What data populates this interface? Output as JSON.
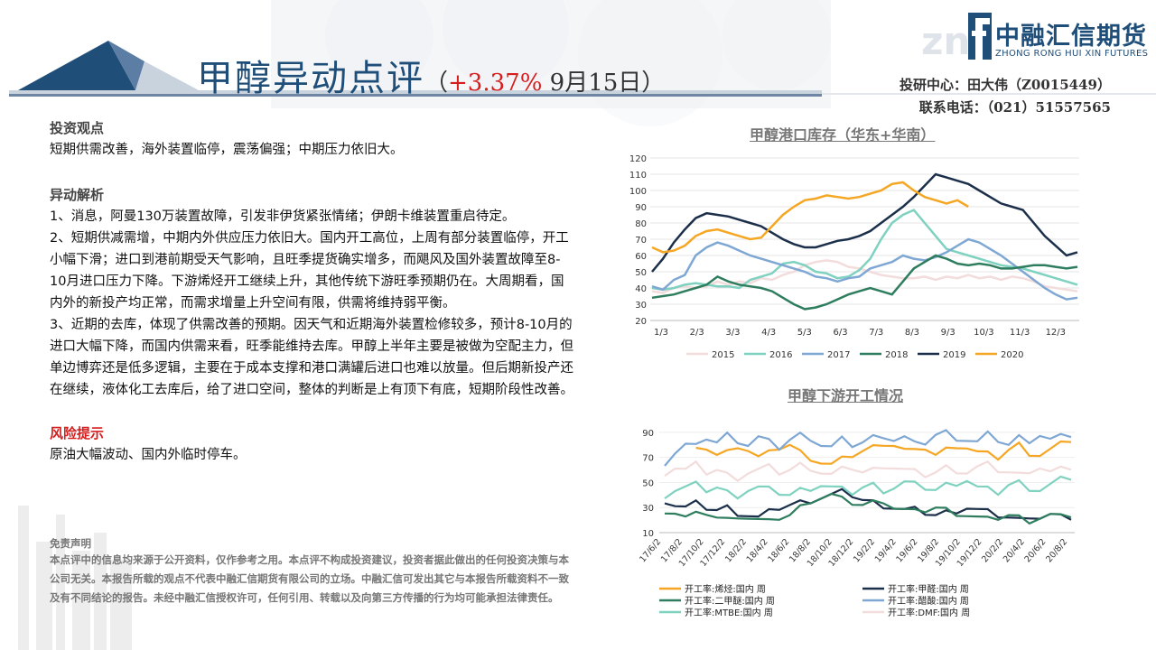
{
  "header": {
    "title_main": "甲醇异动点评",
    "title_sub_open": "（",
    "title_pct": "+3.37%",
    "title_date": " 9月15日）"
  },
  "logo": {
    "cn": "中融汇信期货",
    "en": "ZHONG RONG HUI XIN FUTURES"
  },
  "contact": {
    "line1": "投研中心：田大伟（Z0015449）",
    "line2": "联系电话：（021）51557565"
  },
  "sections": {
    "view_title": "投资观点",
    "view_text": "短期供需改善，海外装置临停，震荡偏强；中期压力依旧大。",
    "analysis_title": "异动解析",
    "analysis": [
      "1、消息，阿曼130万装置故障，引发非伊货紧张情绪；伊朗卡维装置重启待定。",
      "2、短期供减需增，中期内外供应压力依旧大。国内开工高位，上周有部分装置临停，开工小幅下滑；进口到港前期受天气影响，且旺季提货确实增多，而飓风及国外装置故障至8-10月进口压力下降。下游烯烃开工继续上升，其他传统下游旺季预期仍在。大周期看，国内外的新投产均正常，而需求增量上升空间有限，供需将维持弱平衡。",
      "3、近期的去库，体现了供需改善的预期。因天气和近期海外装置检修较多，预计8-10月的进口大幅下降，而国内供需来看，旺季能维持去库。甲醇上半年主要是被做为空配主力，但单边博弈还是低多逻辑，主要在于成本支撑和港口满罐后进口也难以放量。但后期新投产还在继续，液体化工去库后，给了进口空间，整体的判断是上有顶下有底，短期阶段性改善。"
    ],
    "risk_title": "风险提示",
    "risk_text": "原油大幅波动、国内外临时停车。",
    "disclaimer_title": "免责声明",
    "disclaimer_text": "本点评中的信息均来源于公开资料，仅作参考之用。本点评不构成投资建议，投资者据此做出的任何投资决策与本公司无关。本报告所载的观点不代表中融汇信期货有限公司的立场。中融汇信可发出其它与本报告所载资料不一致及有不同结论的报告。未经中融汇信授权许可，任何引用、转载以及向第三方传播的行为均可能承担法律责任。"
  },
  "colors": {
    "brand": "#1f4e79",
    "red": "#d71e1e",
    "s2015": "#f2dcdc",
    "s2016": "#7fd1c0",
    "s2017": "#7fa7d4",
    "s2018": "#2e7d5e",
    "s2019": "#1b2f4a",
    "s2020": "#f5a623"
  },
  "chart_data": [
    {
      "type": "line",
      "title": "甲醇港口库存（华东+华南）",
      "x_ticks": [
        "1/3",
        "2/3",
        "3/3",
        "4/3",
        "5/3",
        "6/3",
        "7/3",
        "8/3",
        "9/3",
        "10/3",
        "11/3",
        "12/3"
      ],
      "ylim": [
        20,
        120
      ],
      "y_ticks": [
        20,
        30,
        40,
        50,
        60,
        70,
        80,
        90,
        100,
        110,
        120
      ],
      "grid": true,
      "legend": "bottom",
      "series": [
        {
          "name": "2015",
          "color_key": "s2015",
          "values": [
            38,
            37,
            40,
            41,
            40,
            41,
            44,
            42,
            44,
            43,
            46,
            45,
            48,
            50,
            54,
            56,
            57,
            56,
            53,
            52,
            50,
            48,
            47,
            46,
            46,
            47,
            45,
            47,
            46,
            48,
            46,
            47,
            45,
            47,
            46,
            44,
            41,
            40,
            39,
            38
          ]
        },
        {
          "name": "2016",
          "color_key": "s2016",
          "values": [
            40,
            39,
            40,
            42,
            43,
            42,
            41,
            41,
            40,
            45,
            47,
            49,
            55,
            56,
            54,
            50,
            49,
            46,
            47,
            51,
            58,
            70,
            80,
            85,
            88,
            80,
            72,
            64,
            62,
            60,
            58,
            56,
            54,
            53,
            52,
            50,
            48,
            46,
            44,
            42
          ]
        },
        {
          "name": "2017",
          "color_key": "s2017",
          "values": [
            41,
            39,
            45,
            48,
            60,
            65,
            68,
            66,
            63,
            60,
            58,
            56,
            54,
            52,
            50,
            47,
            46,
            44,
            46,
            47,
            52,
            54,
            56,
            60,
            58,
            57,
            59,
            62,
            66,
            70,
            68,
            64,
            60,
            55,
            50,
            45,
            40,
            36,
            33,
            34
          ]
        },
        {
          "name": "2018",
          "color_key": "s2018",
          "values": [
            34,
            35,
            36,
            38,
            40,
            42,
            47,
            44,
            42,
            41,
            40,
            38,
            34,
            30,
            27,
            28,
            30,
            33,
            36,
            38,
            40,
            38,
            36,
            44,
            52,
            56,
            60,
            58,
            55,
            54,
            55,
            54,
            52,
            52,
            53,
            54,
            54,
            53,
            52,
            53
          ]
        },
        {
          "name": "2019",
          "color_key": "s2019",
          "values": [
            50,
            58,
            68,
            76,
            83,
            86,
            85,
            84,
            82,
            80,
            78,
            74,
            70,
            67,
            65,
            65,
            67,
            69,
            70,
            72,
            75,
            80,
            85,
            90,
            96,
            103,
            110,
            108,
            106,
            104,
            100,
            96,
            92,
            90,
            88,
            80,
            72,
            66,
            60,
            62
          ]
        },
        {
          "name": "2020",
          "color_key": "s2020",
          "values": [
            65,
            62,
            63,
            66,
            72,
            75,
            76,
            74,
            72,
            70,
            71,
            78,
            85,
            90,
            94,
            95,
            97,
            96,
            95,
            96,
            98,
            100,
            104,
            105,
            100,
            96,
            94,
            92,
            94,
            90
          ]
        }
      ]
    },
    {
      "type": "line",
      "title": "甲醇下游开工情况",
      "x_ticks": [
        "17/6/2",
        "17/8/2",
        "17/10/2",
        "17/12/2",
        "18/2/2",
        "18/4/2",
        "18/6/2",
        "18/8/2",
        "18/10/2",
        "18/12/2",
        "19/2/2",
        "19/4/2",
        "19/6/2",
        "19/8/2",
        "19/10/2",
        "19/12/2",
        "20/2/2",
        "20/4/2",
        "20/6/2",
        "20/8/2"
      ],
      "ylim": [
        10,
        100
      ],
      "y_ticks": [
        10,
        30,
        50,
        70,
        90
      ],
      "legend": "bottom",
      "series": [
        {
          "name": "开工率:烯烃:国内 周",
          "color_key": "s2020",
          "values": [
            null,
            null,
            null,
            75,
            78,
            72,
            74,
            80,
            76,
            70,
            73,
            78,
            80,
            74,
            70,
            66,
            64,
            68,
            72,
            75,
            78,
            82,
            80,
            76,
            74,
            78,
            72,
            76,
            80,
            78,
            74,
            72,
            70,
            76,
            80,
            74,
            72,
            76,
            80,
            84
          ]
        },
        {
          "name": "开工率:甲醛:国内 周",
          "color_key": "s2019",
          "values": [
            36,
            32,
            30,
            33,
            30,
            28,
            30,
            26,
            24,
            22,
            26,
            30,
            32,
            34,
            36,
            38,
            40,
            42,
            40,
            36,
            34,
            32,
            30,
            28,
            28,
            26,
            24,
            26,
            28,
            30,
            28,
            26,
            24,
            22,
            20,
            24,
            22,
            24,
            22,
            22
          ]
        },
        {
          "name": "开工率:二甲醚:国内 周",
          "color_key": "s2018",
          "values": [
            28,
            26,
            22,
            24,
            26,
            22,
            20,
            24,
            22,
            20,
            18,
            22,
            24,
            30,
            36,
            38,
            40,
            36,
            34,
            32,
            34,
            36,
            30,
            28,
            26,
            28,
            30,
            28,
            26,
            24,
            22,
            20,
            22,
            24,
            22,
            20,
            22,
            24,
            22,
            24
          ]
        },
        {
          "name": "开工率:醋酸:国内 周",
          "color_key": "s2017",
          "values": [
            66,
            74,
            80,
            78,
            86,
            82,
            88,
            84,
            80,
            86,
            82,
            78,
            84,
            88,
            86,
            80,
            78,
            84,
            80,
            82,
            86,
            88,
            84,
            86,
            80,
            82,
            88,
            90,
            86,
            84,
            82,
            88,
            84,
            80,
            86,
            84,
            88,
            84,
            86,
            88
          ]
        },
        {
          "name": "开工率:MTBE:国内 周",
          "color_key": "s2016",
          "values": [
            40,
            44,
            46,
            48,
            44,
            46,
            42,
            40,
            44,
            46,
            44,
            42,
            40,
            44,
            46,
            48,
            46,
            44,
            42,
            46,
            48,
            44,
            46,
            50,
            48,
            46,
            44,
            48,
            50,
            52,
            46,
            44,
            42,
            48,
            50,
            46,
            44,
            48,
            52,
            54
          ]
        },
        {
          "name": "开工率:DMF:国内 周",
          "color_key": "s2015",
          "values": [
            58,
            62,
            60,
            64,
            58,
            60,
            56,
            54,
            58,
            60,
            62,
            58,
            60,
            64,
            62,
            58,
            56,
            60,
            62,
            58,
            60,
            64,
            62,
            60,
            58,
            56,
            58,
            62,
            60,
            58,
            62,
            64,
            60,
            58,
            56,
            60,
            62,
            58,
            60,
            62
          ]
        }
      ]
    }
  ]
}
